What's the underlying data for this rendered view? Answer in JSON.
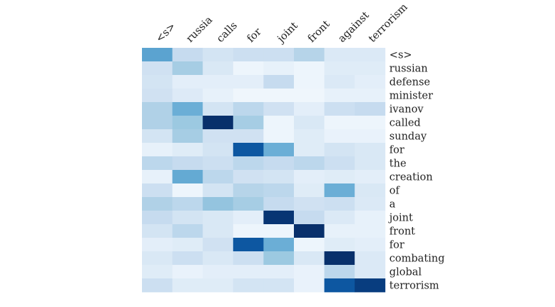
{
  "chart_data": {
    "type": "heatmap",
    "title": "",
    "xlabel": "",
    "ylabel": "",
    "x_labels": [
      "<s>",
      "russia",
      "calls",
      "for",
      "joint",
      "front",
      "against",
      "terrorism"
    ],
    "y_labels": [
      "<s>",
      "russian",
      "defense",
      "minister",
      "ivanov",
      "called",
      "sunday",
      "for",
      "the",
      "creation",
      "of",
      "a",
      "joint",
      "front",
      "for",
      "combating",
      "global",
      "terrorism"
    ],
    "value_range": [
      0,
      1
    ],
    "colormap": "Blues",
    "grid": false,
    "values": [
      [
        0.55,
        0.25,
        0.18,
        0.22,
        0.22,
        0.3,
        0.14,
        0.14
      ],
      [
        0.2,
        0.35,
        0.15,
        0.05,
        0.08,
        0.05,
        0.12,
        0.12
      ],
      [
        0.18,
        0.1,
        0.1,
        0.1,
        0.25,
        0.05,
        0.14,
        0.1
      ],
      [
        0.2,
        0.13,
        0.08,
        0.04,
        0.04,
        0.04,
        0.08,
        0.08
      ],
      [
        0.32,
        0.5,
        0.18,
        0.28,
        0.2,
        0.1,
        0.22,
        0.25
      ],
      [
        0.32,
        0.38,
        1.0,
        0.35,
        0.05,
        0.15,
        0.05,
        0.05
      ],
      [
        0.18,
        0.35,
        0.2,
        0.2,
        0.05,
        0.12,
        0.07,
        0.07
      ],
      [
        0.08,
        0.12,
        0.18,
        0.85,
        0.5,
        0.12,
        0.18,
        0.15
      ],
      [
        0.28,
        0.25,
        0.22,
        0.28,
        0.25,
        0.28,
        0.22,
        0.15
      ],
      [
        0.08,
        0.52,
        0.28,
        0.2,
        0.18,
        0.1,
        0.12,
        0.1
      ],
      [
        0.22,
        0.05,
        0.18,
        0.3,
        0.28,
        0.12,
        0.5,
        0.15
      ],
      [
        0.32,
        0.28,
        0.4,
        0.35,
        0.25,
        0.2,
        0.22,
        0.14
      ],
      [
        0.25,
        0.18,
        0.15,
        0.1,
        0.98,
        0.25,
        0.14,
        0.08
      ],
      [
        0.18,
        0.28,
        0.15,
        0.05,
        0.05,
        1.0,
        0.08,
        0.08
      ],
      [
        0.1,
        0.12,
        0.2,
        0.85,
        0.5,
        0.05,
        0.12,
        0.1
      ],
      [
        0.15,
        0.22,
        0.15,
        0.22,
        0.38,
        0.15,
        1.0,
        0.14
      ],
      [
        0.12,
        0.07,
        0.1,
        0.1,
        0.1,
        0.07,
        0.28,
        0.14
      ],
      [
        0.22,
        0.12,
        0.12,
        0.18,
        0.18,
        0.07,
        0.85,
        0.95
      ]
    ]
  }
}
